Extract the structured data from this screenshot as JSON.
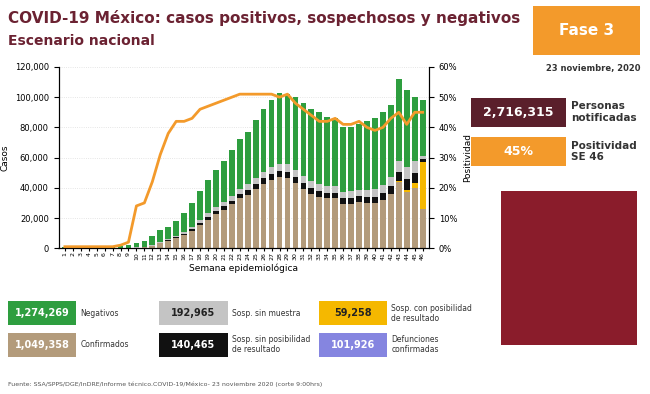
{
  "header": {
    "title": "COVID-19 México: casos positivos, sospechosos y negativos",
    "subtitle": "Escenario nacional",
    "phase": "Fase 3",
    "date": "23 noviembre, 2020"
  },
  "indicators": [
    {
      "value": "2,716,315",
      "label": "Personas notificadas",
      "color": "#5a1f2b"
    },
    {
      "value": "45%",
      "label": "Positividad SE 46",
      "color": "#f39a2b"
    }
  ],
  "counts": [
    {
      "count": "1,274,269",
      "label": "Negativos",
      "color": "#2e9e3f"
    },
    {
      "count": "192,965",
      "label": "Sosp. sin muestra",
      "color": "#c4c4c4"
    },
    {
      "count": "59,258",
      "label": "Sosp. con posibilidad de resultado",
      "color": "#f5b800"
    },
    {
      "count": "1,049,358",
      "label": "Confirmados",
      "color": "#b39b7b"
    },
    {
      "count": "140,465",
      "label": "Sosp. sin posibilidad de resultado",
      "color": "#111111"
    },
    {
      "count": "101,926",
      "label": "Defunciones confirmadas",
      "color": "#8585e0"
    }
  ],
  "source": "Fuente: SSA/SPPS/DGE/InDRE/Informe técnico.COVID-19/México- 23 noviembre 2020 (corte 9:00hrs)",
  "chart_data": {
    "type": "bar",
    "stacked": true,
    "grid": true,
    "x_label": "Semana epidemiológica",
    "y_label": "Casos",
    "y2_label": "Positividad",
    "categories": [
      "1",
      "2",
      "3",
      "4",
      "5",
      "6",
      "7",
      "8",
      "9",
      "10",
      "11",
      "12",
      "13",
      "14",
      "15",
      "16",
      "17",
      "18",
      "19",
      "20",
      "21",
      "22",
      "23",
      "24",
      "25",
      "26",
      "27",
      "28",
      "29",
      "30",
      "31",
      "32",
      "33",
      "34",
      "35",
      "36",
      "37",
      "38",
      "39",
      "40",
      "41",
      "42",
      "43",
      "44",
      "45",
      "46"
    ],
    "ylim": [
      0,
      120000
    ],
    "yticks": [
      0,
      {
        "value": 20000,
        "label": "20,000"
      },
      {
        "value": 40000,
        "label": "40,000"
      },
      {
        "value": 60000,
        "label": "60,000"
      },
      {
        "value": 80000,
        "label": "80,000"
      },
      {
        "value": 100000,
        "label": "100,000"
      },
      {
        "value": 120000,
        "label": "120,000"
      }
    ],
    "y2lim": [
      0,
      60
    ],
    "y2ticks": [
      {
        "value": 0,
        "label": "0%"
      },
      {
        "value": 10,
        "label": "10%"
      },
      {
        "value": 20,
        "label": "20%"
      },
      {
        "value": 30,
        "label": "30%"
      },
      {
        "value": 40,
        "label": "40%"
      },
      {
        "value": 50,
        "label": "50%"
      },
      {
        "value": 60,
        "label": "60%"
      }
    ],
    "series": [
      {
        "name": "Confirmados",
        "type": "bar",
        "color": "#b39b7b",
        "values": [
          0,
          0,
          0,
          0,
          0,
          0,
          0,
          10,
          30,
          400,
          700,
          1600,
          3200,
          4800,
          6800,
          8700,
          11500,
          15500,
          19000,
          22500,
          25500,
          29000,
          33000,
          35500,
          39000,
          42500,
          45000,
          47000,
          46500,
          43000,
          39000,
          36000,
          34000,
          33000,
          33000,
          29500,
          29500,
          30500,
          30000,
          30000,
          32000,
          36000,
          44000,
          37000,
          40000,
          26000
        ]
      },
      {
        "name": "Sosp. con posibilidad de resultado",
        "type": "bar",
        "color": "#f5b800",
        "values": [
          0,
          0,
          0,
          0,
          0,
          0,
          0,
          0,
          0,
          0,
          0,
          0,
          0,
          0,
          0,
          0,
          0,
          0,
          0,
          0,
          0,
          0,
          0,
          0,
          0,
          0,
          0,
          0,
          0,
          0,
          0,
          0,
          0,
          0,
          0,
          0,
          0,
          0,
          0,
          0,
          0,
          200,
          500,
          1500,
          3000,
          31000
        ]
      },
      {
        "name": "Sosp. sin posibilidad de resultado",
        "type": "bar",
        "color": "#111111",
        "values": [
          0,
          0,
          0,
          0,
          0,
          0,
          0,
          0,
          0,
          50,
          100,
          200,
          400,
          500,
          700,
          900,
          1200,
          1500,
          1800,
          2000,
          2200,
          2500,
          2800,
          3200,
          3500,
          3800,
          4000,
          4200,
          4200,
          4000,
          4000,
          4000,
          3800,
          3800,
          3800,
          3500,
          3700,
          3800,
          4000,
          4200,
          4500,
          5000,
          6000,
          7000,
          7000,
          2000
        ]
      },
      {
        "name": "Sosp. sin muestra",
        "type": "bar",
        "color": "#c4c4c4",
        "values": [
          0,
          0,
          50,
          50,
          50,
          50,
          50,
          80,
          100,
          200,
          300,
          400,
          600,
          700,
          900,
          1100,
          1500,
          1800,
          2200,
          2500,
          2800,
          3000,
          3500,
          3800,
          4000,
          4200,
          4500,
          4800,
          4800,
          4800,
          4800,
          4800,
          4600,
          4500,
          4500,
          4300,
          4400,
          4500,
          4700,
          5000,
          5500,
          6000,
          7000,
          8000,
          8000,
          2000
        ]
      },
      {
        "name": "Negativos",
        "type": "bar",
        "color": "#2e9e3f",
        "values": [
          1000,
          1200,
          1450,
          1450,
          1450,
          1450,
          1450,
          1700,
          1900,
          2900,
          3900,
          5800,
          7800,
          8000,
          9600,
          12300,
          15800,
          19200,
          22000,
          25000,
          27500,
          30500,
          32700,
          34500,
          38500,
          41500,
          44500,
          47000,
          46500,
          48200,
          48200,
          47200,
          47600,
          45700,
          44700,
          42700,
          42400,
          43200,
          45300,
          46800,
          48000,
          47800,
          54500,
          51500,
          42000,
          37000
        ]
      },
      {
        "name": "Positividad",
        "type": "line",
        "axis": "y2",
        "color": "#f39a2b",
        "values": [
          0.5,
          0.5,
          0.5,
          0.5,
          0.5,
          0.5,
          0.5,
          1,
          2,
          14,
          15,
          22,
          31,
          38,
          42,
          42,
          43,
          46,
          47,
          48,
          49,
          50,
          51,
          51,
          51,
          51,
          51,
          50,
          51,
          48,
          46,
          44,
          42,
          42,
          43,
          41,
          41,
          42,
          40,
          39,
          40,
          43,
          45,
          41,
          45,
          45
        ]
      }
    ]
  }
}
